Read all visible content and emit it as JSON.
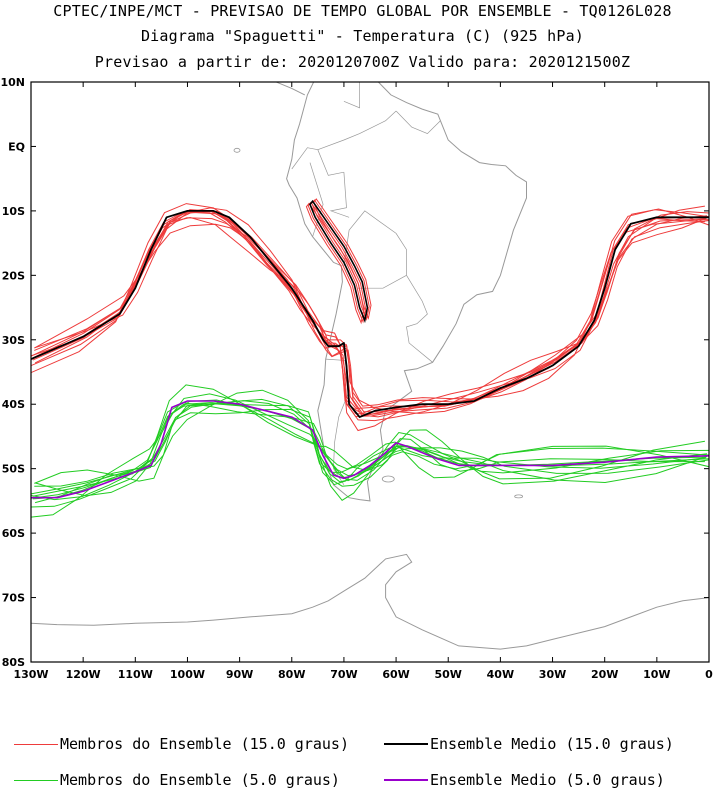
{
  "header": {
    "line1": "CPTEC/INPE/MCT - PREVISAO DE TEMPO GLOBAL POR ENSEMBLE - TQ0126L028",
    "line2": "Diagrama \"Spaguetti\" - Temperatura (C) (925 hPa)",
    "line3": "Previsao a partir de: 2020120700Z  Valido para: 2020121500Z"
  },
  "axes": {
    "lat_labels": [
      "10N",
      "EQ",
      "10S",
      "20S",
      "30S",
      "40S",
      "50S",
      "60S",
      "70S",
      "80S"
    ],
    "lon_labels": [
      "130W",
      "120W",
      "110W",
      "100W",
      "90W",
      "80W",
      "70W",
      "60W",
      "50W",
      "40W",
      "30W",
      "20W",
      "10W",
      "0"
    ]
  },
  "legend": {
    "members_15": "Membros do Ensemble (15.0 graus)",
    "mean_15": "Ensemble Medio (15.0 graus)",
    "members_5": "Membros do Ensemble (5.0 graus)",
    "mean_5": "Ensemble Medio (5.0 graus)"
  },
  "colors": {
    "members_15": "#ee3b3b",
    "mean_15": "#000000",
    "members_5": "#22cc22",
    "mean_5": "#9900cc",
    "coast": "#999999"
  },
  "chart_data": {
    "type": "line",
    "title": "Diagrama \"Spaguetti\" - Temperatura (C) (925 hPa)",
    "xlim": [
      -130,
      0
    ],
    "ylim": [
      -80,
      10
    ],
    "series": [
      {
        "name": "Ensemble Medio (15.0 graus)",
        "lon": [
          -130,
          -120,
          -113,
          -110,
          -107,
          -104,
          -100,
          -95,
          -92,
          -88,
          -84,
          -80,
          -78,
          -76,
          -74,
          -73,
          -71,
          -70,
          -69.5,
          -69,
          -67,
          -64,
          -60,
          -55,
          -50,
          -45,
          -40,
          -35,
          -30,
          -25,
          -22,
          -20,
          -18,
          -15,
          -10,
          -5,
          0
        ],
        "lat": [
          -33,
          -29.5,
          -26,
          -22,
          -16,
          -11,
          -10,
          -10,
          -11,
          -14,
          -18,
          -22,
          -24.5,
          -27,
          -30,
          -31,
          -31,
          -30.5,
          -34,
          -40,
          -42,
          -41,
          -40.5,
          -40,
          -40,
          -39.5,
          -37.5,
          -36,
          -34,
          -31,
          -27,
          -22,
          -16,
          -12,
          -11,
          -11,
          -11
        ]
      },
      {
        "name": "Ensemble Medio (5.0 graus)",
        "lon": [
          -130,
          -125,
          -120,
          -115,
          -110,
          -107,
          -105,
          -103,
          -100,
          -95,
          -90,
          -85,
          -80,
          -76,
          -75,
          -74,
          -72,
          -70,
          -68,
          -65,
          -62,
          -60,
          -58,
          -55,
          -52,
          -48,
          -44,
          -40,
          -30,
          -20,
          -10,
          0
        ],
        "lat": [
          -54.5,
          -54.5,
          -53.5,
          -52,
          -50.5,
          -49.5,
          -46,
          -40.5,
          -39.5,
          -39.5,
          -40,
          -41,
          -42,
          -44,
          -46,
          -48,
          -51,
          -51.5,
          -51,
          -49.5,
          -47.5,
          -46,
          -46.5,
          -47.5,
          -48.5,
          -49.5,
          -49.5,
          -49.5,
          -49.5,
          -49,
          -48.2,
          -48
        ]
      }
    ]
  }
}
